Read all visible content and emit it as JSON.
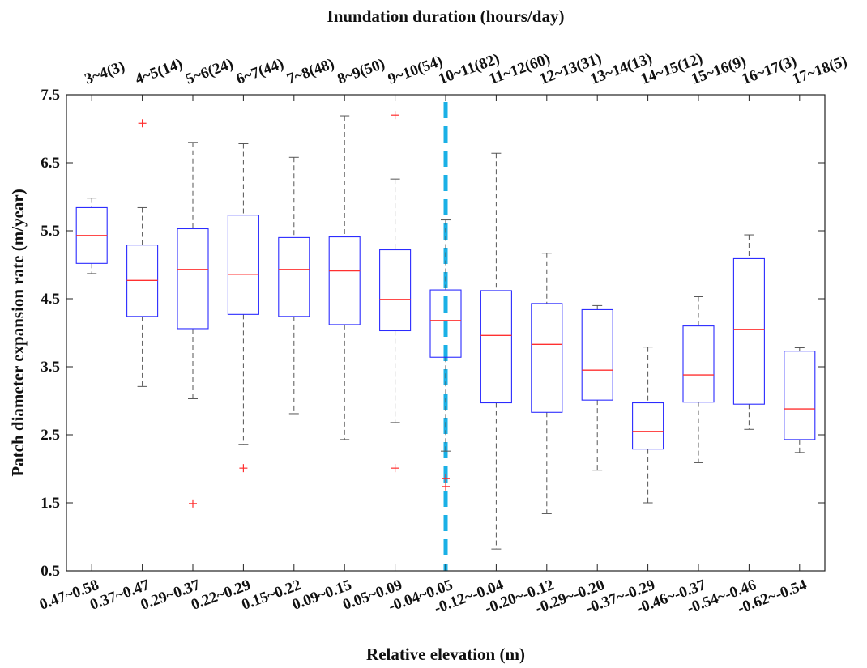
{
  "chart_data": {
    "type": "boxplot",
    "title": "Inundation duration (hours/day)",
    "xlabel": "Relative elevation (m)",
    "ylabel": "Patch diameter expansion rate (m/year)",
    "ylim": [
      0.5,
      7.5
    ],
    "yticks": [
      0.5,
      1.5,
      2.5,
      3.5,
      4.5,
      5.5,
      6.5,
      7.5
    ],
    "categories": [
      "0.47~0.58",
      "0.37~0.47",
      "0.29~0.37",
      "0.22~0.29",
      "0.15~0.22",
      "0.09~0.15",
      "0.05~0.09",
      "-0.04~0.05",
      "-0.12~-0.04",
      "-0.20~-0.12",
      "-0.29~-0.20",
      "-0.37~-0.29",
      "-0.46~-0.37",
      "-0.54~-0.46",
      "-0.62~-0.54"
    ],
    "top_categories": [
      "3~4(3)",
      "4~5(14)",
      "5~6(24)",
      "6~7(44)",
      "7~8(48)",
      "8~9(50)",
      "9~10(54)",
      "10~11(82)",
      "11~12(60)",
      "12~13(31)",
      "13~14(13)",
      "14~15(12)",
      "15~16(9)",
      "16~17(3)",
      "17~18(5)"
    ],
    "boxes": [
      {
        "whisker_low": 4.87,
        "q1": 5.02,
        "median": 5.43,
        "q3": 5.84,
        "whisker_high": 5.98,
        "outliers": []
      },
      {
        "whisker_low": 3.21,
        "q1": 4.24,
        "median": 4.77,
        "q3": 5.29,
        "whisker_high": 5.84,
        "outliers": [
          7.08
        ]
      },
      {
        "whisker_low": 3.03,
        "q1": 4.06,
        "median": 4.93,
        "q3": 5.53,
        "whisker_high": 6.8,
        "outliers": [
          1.49
        ]
      },
      {
        "whisker_low": 2.36,
        "q1": 4.27,
        "median": 4.86,
        "q3": 5.73,
        "whisker_high": 6.78,
        "outliers": [
          2.01
        ]
      },
      {
        "whisker_low": 2.81,
        "q1": 4.24,
        "median": 4.93,
        "q3": 5.4,
        "whisker_high": 6.58,
        "outliers": []
      },
      {
        "whisker_low": 2.43,
        "q1": 4.12,
        "median": 4.91,
        "q3": 5.41,
        "whisker_high": 7.19,
        "outliers": []
      },
      {
        "whisker_low": 2.68,
        "q1": 4.03,
        "median": 4.49,
        "q3": 5.22,
        "whisker_high": 6.26,
        "outliers": [
          7.2,
          2.01
        ]
      },
      {
        "whisker_low": 2.26,
        "q1": 3.64,
        "median": 4.18,
        "q3": 4.63,
        "whisker_high": 5.66,
        "outliers": [
          1.86,
          1.74
        ]
      },
      {
        "whisker_low": 0.82,
        "q1": 2.97,
        "median": 3.96,
        "q3": 4.62,
        "whisker_high": 6.64,
        "outliers": []
      },
      {
        "whisker_low": 1.34,
        "q1": 2.83,
        "median": 3.83,
        "q3": 4.43,
        "whisker_high": 5.17,
        "outliers": []
      },
      {
        "whisker_low": 1.98,
        "q1": 3.01,
        "median": 3.45,
        "q3": 4.34,
        "whisker_high": 4.4,
        "outliers": []
      },
      {
        "whisker_low": 1.5,
        "q1": 2.29,
        "median": 2.55,
        "q3": 2.97,
        "whisker_high": 3.79,
        "outliers": []
      },
      {
        "whisker_low": 2.09,
        "q1": 2.98,
        "median": 3.38,
        "q3": 4.1,
        "whisker_high": 4.53,
        "outliers": []
      },
      {
        "whisker_low": 2.58,
        "q1": 2.95,
        "median": 4.05,
        "q3": 5.09,
        "whisker_high": 5.44,
        "outliers": []
      },
      {
        "whisker_low": 2.24,
        "q1": 2.43,
        "median": 2.88,
        "q3": 3.73,
        "whisker_high": 3.78,
        "outliers": []
      }
    ],
    "reference_line": {
      "category_index": 7,
      "style": "dashed",
      "color": "#1ab0e6"
    },
    "colors": {
      "box": "#2b2bff",
      "median": "#ff3030",
      "whisker": "#555555",
      "outlier": "#ff3030",
      "axis": "#222222"
    },
    "grid": false
  }
}
